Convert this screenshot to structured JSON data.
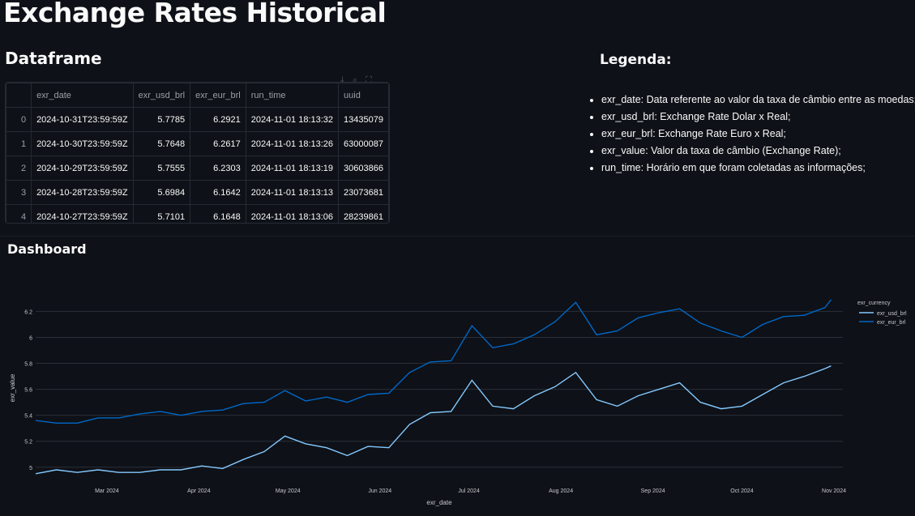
{
  "page": {
    "title": "Exchange Rates Historical",
    "dataframe_heading": "Dataframe",
    "legend_heading": "Legenda:",
    "dashboard_heading": "Dashboard"
  },
  "dataframe": {
    "columns": [
      "",
      "exr_date",
      "exr_usd_brl",
      "exr_eur_brl",
      "run_time",
      "uuid"
    ],
    "rows": [
      {
        "index": "0",
        "exr_date": "2024-10-31T23:59:59Z",
        "usd": "5.7785",
        "eur": "6.2921",
        "run_time": "2024-11-01 18:13:32",
        "uuid": "13435079"
      },
      {
        "index": "1",
        "exr_date": "2024-10-30T23:59:59Z",
        "usd": "5.7648",
        "eur": "6.2617",
        "run_time": "2024-11-01 18:13:26",
        "uuid": "63000087"
      },
      {
        "index": "2",
        "exr_date": "2024-10-29T23:59:59Z",
        "usd": "5.7555",
        "eur": "6.2303",
        "run_time": "2024-11-01 18:13:19",
        "uuid": "30603866"
      },
      {
        "index": "3",
        "exr_date": "2024-10-28T23:59:59Z",
        "usd": "5.6984",
        "eur": "6.1642",
        "run_time": "2024-11-01 18:13:13",
        "uuid": "23073681"
      },
      {
        "index": "4",
        "exr_date": "2024-10-27T23:59:59Z",
        "usd": "5.7101",
        "eur": "6.1648",
        "run_time": "2024-11-01 18:13:06",
        "uuid": "28239861"
      }
    ]
  },
  "legend_items": [
    "exr_date: Data referente ao valor da taxa de câmbio entre as moedas;",
    "exr_usd_brl: Exchange Rate Dolar x Real;",
    "exr_eur_brl: Exchange Rate Euro x Real;",
    "exr_value: Valor da taxa de câmbio (Exchange Rate);",
    "run_time: Horário em que foram coletadas as informações;"
  ],
  "colors": {
    "background": "#0e1117",
    "usd_line": "#83c9ff",
    "eur_line": "#0068c9",
    "grid": "#2a2f3a"
  },
  "chart_data": {
    "type": "line",
    "xlabel": "exr_date",
    "ylabel": "exr_value",
    "ylim": [
      4.93,
      6.29
    ],
    "xlim": [
      "2024-02-06",
      "2024-11-04"
    ],
    "x_ticks": [
      {
        "date": "2024-03-01",
        "label": "Mar 2024"
      },
      {
        "date": "2024-04-01",
        "label": "Apr 2024"
      },
      {
        "date": "2024-05-01",
        "label": "May 2024"
      },
      {
        "date": "2024-06-01",
        "label": "Jun 2024"
      },
      {
        "date": "2024-07-01",
        "label": "Jul 2024"
      },
      {
        "date": "2024-08-01",
        "label": "Aug 2024"
      },
      {
        "date": "2024-09-01",
        "label": "Sep 2024"
      },
      {
        "date": "2024-10-01",
        "label": "Oct 2024"
      },
      {
        "date": "2024-11-01",
        "label": "Nov 2024"
      }
    ],
    "y_ticks": [
      5,
      5.2,
      5.4,
      5.6,
      5.8,
      6,
      6.2
    ],
    "y_tick_labels": [
      "5",
      "5.2",
      "5.4",
      "5.6",
      "5.8",
      "6",
      "6.2"
    ],
    "legend_title": "exr_currency",
    "legend_position": "right",
    "series": [
      {
        "name": "exr_usd_brl",
        "points": [
          [
            "2024-02-06",
            4.95
          ],
          [
            "2024-02-13",
            4.98
          ],
          [
            "2024-02-20",
            4.96
          ],
          [
            "2024-02-27",
            4.98
          ],
          [
            "2024-03-05",
            4.96
          ],
          [
            "2024-03-12",
            4.96
          ],
          [
            "2024-03-19",
            4.98
          ],
          [
            "2024-03-26",
            4.98
          ],
          [
            "2024-04-02",
            5.01
          ],
          [
            "2024-04-09",
            4.99
          ],
          [
            "2024-04-16",
            5.06
          ],
          [
            "2024-04-23",
            5.12
          ],
          [
            "2024-04-30",
            5.24
          ],
          [
            "2024-05-07",
            5.18
          ],
          [
            "2024-05-14",
            5.15
          ],
          [
            "2024-05-21",
            5.09
          ],
          [
            "2024-05-28",
            5.16
          ],
          [
            "2024-06-04",
            5.15
          ],
          [
            "2024-06-11",
            5.33
          ],
          [
            "2024-06-18",
            5.42
          ],
          [
            "2024-06-25",
            5.43
          ],
          [
            "2024-07-02",
            5.67
          ],
          [
            "2024-07-09",
            5.47
          ],
          [
            "2024-07-16",
            5.45
          ],
          [
            "2024-07-23",
            5.55
          ],
          [
            "2024-07-30",
            5.62
          ],
          [
            "2024-08-06",
            5.73
          ],
          [
            "2024-08-13",
            5.52
          ],
          [
            "2024-08-20",
            5.47
          ],
          [
            "2024-08-27",
            5.55
          ],
          [
            "2024-09-03",
            5.6
          ],
          [
            "2024-09-10",
            5.65
          ],
          [
            "2024-09-17",
            5.5
          ],
          [
            "2024-09-24",
            5.45
          ],
          [
            "2024-10-01",
            5.47
          ],
          [
            "2024-10-08",
            5.56
          ],
          [
            "2024-10-15",
            5.65
          ],
          [
            "2024-10-22",
            5.7
          ],
          [
            "2024-10-29",
            5.76
          ],
          [
            "2024-10-31",
            5.78
          ]
        ]
      },
      {
        "name": "exr_eur_brl",
        "points": [
          [
            "2024-02-06",
            5.36
          ],
          [
            "2024-02-13",
            5.34
          ],
          [
            "2024-02-20",
            5.34
          ],
          [
            "2024-02-27",
            5.38
          ],
          [
            "2024-03-05",
            5.38
          ],
          [
            "2024-03-12",
            5.41
          ],
          [
            "2024-03-19",
            5.43
          ],
          [
            "2024-03-26",
            5.4
          ],
          [
            "2024-04-02",
            5.43
          ],
          [
            "2024-04-09",
            5.44
          ],
          [
            "2024-04-16",
            5.49
          ],
          [
            "2024-04-23",
            5.5
          ],
          [
            "2024-04-30",
            5.59
          ],
          [
            "2024-05-07",
            5.51
          ],
          [
            "2024-05-14",
            5.54
          ],
          [
            "2024-05-21",
            5.5
          ],
          [
            "2024-05-28",
            5.56
          ],
          [
            "2024-06-04",
            5.57
          ],
          [
            "2024-06-11",
            5.73
          ],
          [
            "2024-06-18",
            5.81
          ],
          [
            "2024-06-25",
            5.82
          ],
          [
            "2024-07-02",
            6.09
          ],
          [
            "2024-07-09",
            5.92
          ],
          [
            "2024-07-16",
            5.95
          ],
          [
            "2024-07-23",
            6.02
          ],
          [
            "2024-07-30",
            6.12
          ],
          [
            "2024-08-06",
            6.27
          ],
          [
            "2024-08-13",
            6.02
          ],
          [
            "2024-08-20",
            6.05
          ],
          [
            "2024-08-27",
            6.15
          ],
          [
            "2024-09-03",
            6.19
          ],
          [
            "2024-09-10",
            6.22
          ],
          [
            "2024-09-17",
            6.11
          ],
          [
            "2024-09-24",
            6.05
          ],
          [
            "2024-10-01",
            6.0
          ],
          [
            "2024-10-08",
            6.1
          ],
          [
            "2024-10-15",
            6.16
          ],
          [
            "2024-10-22",
            6.17
          ],
          [
            "2024-10-29",
            6.23
          ],
          [
            "2024-10-31",
            6.29
          ]
        ]
      }
    ]
  }
}
